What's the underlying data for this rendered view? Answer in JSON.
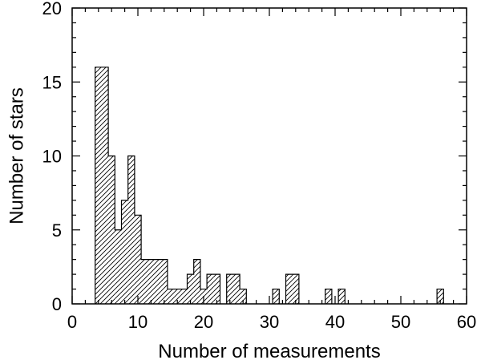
{
  "chart_data": {
    "type": "bar",
    "title": "",
    "xlabel": "Number of measurements",
    "ylabel": "Number of stars",
    "xlim": [
      0,
      60
    ],
    "ylim": [
      0,
      20
    ],
    "xticks": [
      0,
      10,
      20,
      30,
      40,
      50,
      60
    ],
    "yticks": [
      0,
      5,
      10,
      15,
      20
    ],
    "grid": false,
    "bin_width": 1,
    "bins": [
      {
        "x0": 3.5,
        "count": 16
      },
      {
        "x0": 4.5,
        "count": 16
      },
      {
        "x0": 5.5,
        "count": 10
      },
      {
        "x0": 6.5,
        "count": 5
      },
      {
        "x0": 7.5,
        "count": 7
      },
      {
        "x0": 8.5,
        "count": 10
      },
      {
        "x0": 9.5,
        "count": 6
      },
      {
        "x0": 10.5,
        "count": 3
      },
      {
        "x0": 11.5,
        "count": 3
      },
      {
        "x0": 12.5,
        "count": 3
      },
      {
        "x0": 13.5,
        "count": 3
      },
      {
        "x0": 14.5,
        "count": 1
      },
      {
        "x0": 15.5,
        "count": 1
      },
      {
        "x0": 16.5,
        "count": 1
      },
      {
        "x0": 17.5,
        "count": 2
      },
      {
        "x0": 18.5,
        "count": 3
      },
      {
        "x0": 19.5,
        "count": 1
      },
      {
        "x0": 20.5,
        "count": 2
      },
      {
        "x0": 21.5,
        "count": 2
      },
      {
        "x0": 23.5,
        "count": 2
      },
      {
        "x0": 24.5,
        "count": 2
      },
      {
        "x0": 25.5,
        "count": 1
      },
      {
        "x0": 30.5,
        "count": 1
      },
      {
        "x0": 32.5,
        "count": 2
      },
      {
        "x0": 33.5,
        "count": 2
      },
      {
        "x0": 38.5,
        "count": 1
      },
      {
        "x0": 40.5,
        "count": 1
      },
      {
        "x0": 55.5,
        "count": 1
      }
    ],
    "fill": "diagonal-hatch",
    "colors": {
      "line": "#000000",
      "background": "#ffffff"
    }
  }
}
